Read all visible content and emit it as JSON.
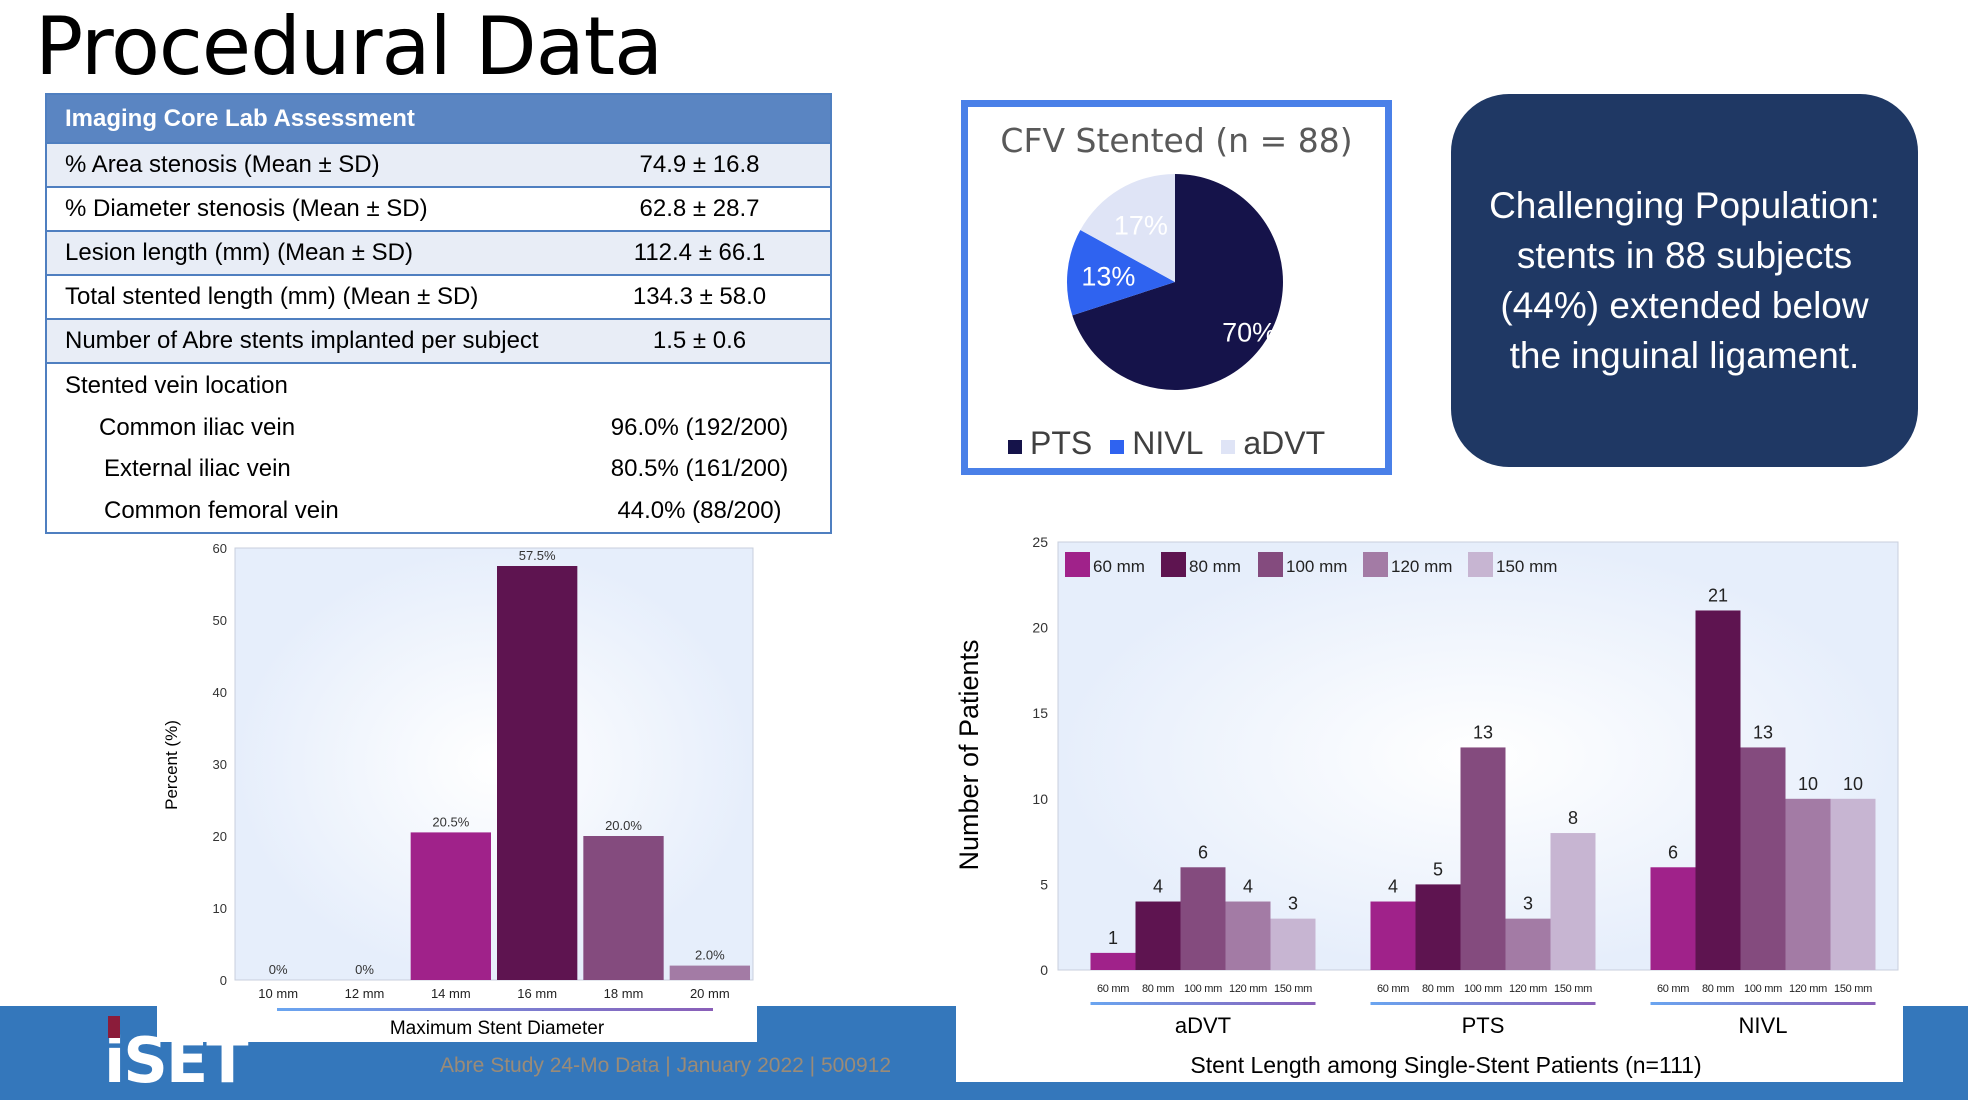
{
  "title": "Procedural Data",
  "table": {
    "header": "Imaging Core Lab Assessment",
    "rows": [
      {
        "label": "% Area stenosis (Mean ± SD)",
        "value": "74.9 ± 16.8"
      },
      {
        "label": "% Diameter stenosis (Mean ± SD)",
        "value": "62.8 ± 28.7"
      },
      {
        "label": "Lesion length (mm) (Mean ± SD)",
        "value": "112.4 ± 66.1"
      },
      {
        "label": "Total stented length (mm) (Mean ± SD)",
        "value": "134.3 ± 58.0"
      },
      {
        "label": "Number of Abre stents implanted per subject",
        "value": "1.5 ± 0.6"
      }
    ],
    "location_label": "Stented vein location",
    "locations": [
      {
        "label": "Common iliac vein",
        "value": "96.0% (192/200)"
      },
      {
        "label": "External iliac vein",
        "value": "80.5% (161/200)"
      },
      {
        "label": "Common femoral vein",
        "value": "44.0% (88/200)"
      }
    ]
  },
  "callout": "Challenging Population: stents in 88 subjects (44%) extended below the inguinal ligament.",
  "footer": {
    "logo": "iSET",
    "text": "Abre Study 24-Mo Data | January 2022 | 500912"
  },
  "chart_data": [
    {
      "type": "pie",
      "title": "CFV Stented (n = 88)",
      "categories": [
        "PTS",
        "NIVL",
        "aDVT"
      ],
      "values": [
        70,
        13,
        17
      ],
      "labels": [
        "70%",
        "13%",
        "17%"
      ],
      "colors": [
        "#15134a",
        "#2f63f0",
        "#dfe4f6"
      ],
      "legend": "bottom"
    },
    {
      "type": "bar",
      "title": "",
      "xlabel": "Maximum Stent Diameter",
      "ylabel": "Percent (%)",
      "categories": [
        "10 mm",
        "12 mm",
        "14 mm",
        "16 mm",
        "18 mm",
        "20 mm"
      ],
      "values": [
        0,
        0,
        20.5,
        57.5,
        20.0,
        2.0
      ],
      "labels": [
        "0%",
        "0%",
        "20.5%",
        "57.5%",
        "20.0%",
        "2.0%"
      ],
      "colors": [
        "#a0228a",
        "#a0228a",
        "#a0228a",
        "#5e1450",
        "#844b7e",
        "#a37ba5"
      ],
      "ylim": [
        0,
        60
      ],
      "yticks": [
        0,
        10,
        20,
        30,
        40,
        50,
        60
      ],
      "grid": false
    },
    {
      "type": "bar",
      "title": "Stent Length among Single-Stent Patients (n=111)",
      "xlabel": "",
      "ylabel": "Number of Patients",
      "categories": [
        "aDVT",
        "PTS",
        "NIVL"
      ],
      "subcategories": [
        "60 mm",
        "80 mm",
        "100 mm",
        "120 mm",
        "150 mm"
      ],
      "series": [
        {
          "name": "60 mm",
          "values": [
            1,
            4,
            6
          ],
          "color": "#a0228a"
        },
        {
          "name": "80 mm",
          "values": [
            4,
            5,
            21
          ],
          "color": "#5e1450"
        },
        {
          "name": "100 mm",
          "values": [
            6,
            13,
            13
          ],
          "color": "#844b7e"
        },
        {
          "name": "120 mm",
          "values": [
            4,
            3,
            10
          ],
          "color": "#a37ba5"
        },
        {
          "name": "150 mm",
          "values": [
            3,
            8,
            10
          ],
          "color": "#c7b5d2"
        }
      ],
      "ylim": [
        0,
        25
      ],
      "yticks": [
        0,
        5,
        10,
        15,
        20,
        25
      ],
      "legend": "top-left",
      "grid": false
    }
  ]
}
